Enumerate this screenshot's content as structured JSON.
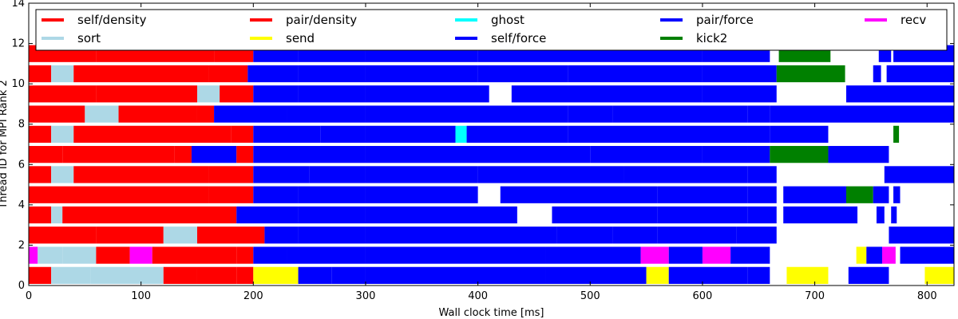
{
  "chart_data": {
    "type": "bar",
    "subtype": "task-timeline",
    "title": "",
    "xlabel": "Wall clock time [ms]",
    "ylabel": "Thread ID for MPI Rank 2",
    "xlim": [
      0,
      824
    ],
    "ylim": [
      0,
      14
    ],
    "xticks": [
      0,
      100,
      200,
      300,
      400,
      500,
      600,
      700,
      800
    ],
    "yticks": [
      0,
      2,
      4,
      6,
      8,
      10,
      12,
      14
    ],
    "grid": false,
    "legend_position": "top",
    "series": [
      {
        "name": "self/density",
        "color": "#ff0000"
      },
      {
        "name": "sort",
        "color": "#add8e6"
      },
      {
        "name": "pair/density",
        "color": "#ff0000"
      },
      {
        "name": "send",
        "color": "#ffff00"
      },
      {
        "name": "ghost",
        "color": "#00ffff"
      },
      {
        "name": "self/force",
        "color": "#0000ff"
      },
      {
        "name": "pair/force",
        "color": "#0000ff"
      },
      {
        "name": "kick2",
        "color": "#008000"
      },
      {
        "name": "recv",
        "color": "#ff00ff"
      }
    ],
    "threads": [
      {
        "thread": 0,
        "segments": [
          [
            0,
            20,
            "self/density"
          ],
          [
            20,
            55,
            "sort"
          ],
          [
            55,
            120,
            "sort"
          ],
          [
            120,
            150,
            "self/density"
          ],
          [
            150,
            185,
            "pair/density"
          ],
          [
            185,
            200,
            "pair/density"
          ],
          [
            200,
            240,
            "send"
          ],
          [
            240,
            270,
            "pair/force"
          ],
          [
            270,
            300,
            "pair/force"
          ],
          [
            300,
            460,
            "pair/force"
          ],
          [
            460,
            550,
            "pair/force"
          ],
          [
            550,
            570,
            "send"
          ],
          [
            570,
            640,
            "pair/force"
          ],
          [
            640,
            660,
            "pair/force"
          ],
          [
            675,
            712,
            "send"
          ],
          [
            730,
            766,
            "pair/force"
          ],
          [
            798,
            824,
            "send"
          ]
        ]
      },
      {
        "thread": 1,
        "segments": [
          [
            0,
            8,
            "recv"
          ],
          [
            8,
            30,
            "sort"
          ],
          [
            30,
            60,
            "sort"
          ],
          [
            60,
            90,
            "self/density"
          ],
          [
            90,
            110,
            "recv"
          ],
          [
            110,
            185,
            "self/density"
          ],
          [
            185,
            200,
            "pair/density"
          ],
          [
            200,
            230,
            "pair/force"
          ],
          [
            230,
            300,
            "pair/force"
          ],
          [
            300,
            460,
            "pair/force"
          ],
          [
            460,
            545,
            "pair/force"
          ],
          [
            545,
            570,
            "recv"
          ],
          [
            570,
            600,
            "pair/force"
          ],
          [
            600,
            625,
            "recv"
          ],
          [
            625,
            660,
            "pair/force"
          ],
          [
            737,
            746,
            "send"
          ],
          [
            746,
            760,
            "pair/force"
          ],
          [
            760,
            772,
            "recv"
          ],
          [
            776,
            824,
            "pair/force"
          ]
        ]
      },
      {
        "thread": 2,
        "segments": [
          [
            0,
            60,
            "self/density"
          ],
          [
            60,
            120,
            "self/density"
          ],
          [
            120,
            150,
            "sort"
          ],
          [
            150,
            210,
            "pair/density"
          ],
          [
            210,
            240,
            "pair/force"
          ],
          [
            240,
            300,
            "pair/force"
          ],
          [
            300,
            470,
            "pair/force"
          ],
          [
            470,
            520,
            "pair/force"
          ],
          [
            520,
            560,
            "pair/force"
          ],
          [
            560,
            630,
            "pair/force"
          ],
          [
            630,
            666,
            "pair/force"
          ],
          [
            766,
            824,
            "pair/force"
          ]
        ]
      },
      {
        "thread": 3,
        "segments": [
          [
            0,
            20,
            "self/density"
          ],
          [
            20,
            30,
            "sort"
          ],
          [
            30,
            185,
            "self/density"
          ],
          [
            185,
            240,
            "pair/force"
          ],
          [
            240,
            300,
            "pair/force"
          ],
          [
            300,
            435,
            "pair/force"
          ],
          [
            466,
            560,
            "pair/force"
          ],
          [
            560,
            640,
            "pair/force"
          ],
          [
            640,
            666,
            "pair/force"
          ],
          [
            672,
            738,
            "pair/force"
          ],
          [
            755,
            762,
            "pair/force"
          ],
          [
            768,
            773,
            "pair/force"
          ]
        ]
      },
      {
        "thread": 4,
        "segments": [
          [
            0,
            160,
            "self/density"
          ],
          [
            160,
            200,
            "pair/density"
          ],
          [
            200,
            240,
            "pair/force"
          ],
          [
            240,
            300,
            "pair/force"
          ],
          [
            300,
            400,
            "pair/force"
          ],
          [
            420,
            560,
            "pair/force"
          ],
          [
            560,
            640,
            "pair/force"
          ],
          [
            640,
            666,
            "pair/force"
          ],
          [
            672,
            728,
            "pair/force"
          ],
          [
            728,
            752,
            "kick2"
          ],
          [
            752,
            766,
            "pair/force"
          ],
          [
            770,
            776,
            "pair/force"
          ]
        ]
      },
      {
        "thread": 5,
        "segments": [
          [
            0,
            20,
            "self/density"
          ],
          [
            20,
            40,
            "sort"
          ],
          [
            40,
            160,
            "self/density"
          ],
          [
            160,
            200,
            "pair/density"
          ],
          [
            200,
            250,
            "pair/force"
          ],
          [
            250,
            300,
            "pair/force"
          ],
          [
            300,
            400,
            "pair/force"
          ],
          [
            400,
            530,
            "pair/force"
          ],
          [
            530,
            640,
            "pair/force"
          ],
          [
            640,
            666,
            "pair/force"
          ],
          [
            762,
            824,
            "pair/force"
          ]
        ]
      },
      {
        "thread": 6,
        "segments": [
          [
            0,
            30,
            "self/density"
          ],
          [
            30,
            130,
            "self/density"
          ],
          [
            130,
            145,
            "pair/density"
          ],
          [
            145,
            185,
            "pair/force"
          ],
          [
            185,
            200,
            "pair/density"
          ],
          [
            200,
            300,
            "pair/force"
          ],
          [
            300,
            500,
            "pair/force"
          ],
          [
            500,
            600,
            "pair/force"
          ],
          [
            600,
            660,
            "pair/force"
          ],
          [
            660,
            712,
            "kick2"
          ],
          [
            712,
            766,
            "pair/force"
          ]
        ]
      },
      {
        "thread": 7,
        "segments": [
          [
            0,
            20,
            "self/density"
          ],
          [
            20,
            40,
            "sort"
          ],
          [
            40,
            180,
            "self/density"
          ],
          [
            180,
            200,
            "pair/density"
          ],
          [
            200,
            260,
            "pair/force"
          ],
          [
            260,
            300,
            "pair/force"
          ],
          [
            300,
            380,
            "pair/force"
          ],
          [
            380,
            390,
            "ghost"
          ],
          [
            390,
            480,
            "pair/force"
          ],
          [
            480,
            660,
            "pair/force"
          ],
          [
            660,
            712,
            "pair/force"
          ],
          [
            770,
            775,
            "kick2"
          ]
        ]
      },
      {
        "thread": 8,
        "segments": [
          [
            0,
            50,
            "self/density"
          ],
          [
            50,
            80,
            "sort"
          ],
          [
            80,
            150,
            "self/density"
          ],
          [
            150,
            165,
            "pair/density"
          ],
          [
            165,
            230,
            "pair/force"
          ],
          [
            230,
            300,
            "pair/force"
          ],
          [
            300,
            480,
            "pair/force"
          ],
          [
            480,
            520,
            "pair/force"
          ],
          [
            520,
            640,
            "pair/force"
          ],
          [
            640,
            660,
            "pair/force"
          ],
          [
            660,
            824,
            "pair/force"
          ]
        ]
      },
      {
        "thread": 9,
        "segments": [
          [
            0,
            60,
            "self/density"
          ],
          [
            60,
            150,
            "self/density"
          ],
          [
            150,
            170,
            "sort"
          ],
          [
            170,
            200,
            "pair/density"
          ],
          [
            200,
            240,
            "pair/force"
          ],
          [
            240,
            300,
            "pair/force"
          ],
          [
            300,
            410,
            "pair/force"
          ],
          [
            430,
            600,
            "pair/force"
          ],
          [
            600,
            666,
            "pair/force"
          ],
          [
            728,
            824,
            "pair/force"
          ]
        ]
      },
      {
        "thread": 10,
        "segments": [
          [
            0,
            20,
            "self/density"
          ],
          [
            20,
            40,
            "sort"
          ],
          [
            40,
            160,
            "self/density"
          ],
          [
            160,
            195,
            "pair/density"
          ],
          [
            195,
            240,
            "pair/force"
          ],
          [
            240,
            300,
            "pair/force"
          ],
          [
            300,
            400,
            "pair/force"
          ],
          [
            400,
            480,
            "pair/force"
          ],
          [
            480,
            600,
            "pair/force"
          ],
          [
            600,
            666,
            "pair/force"
          ],
          [
            666,
            727,
            "kick2"
          ],
          [
            752,
            759,
            "pair/force"
          ],
          [
            764,
            824,
            "pair/force"
          ]
        ]
      },
      {
        "thread": 11,
        "segments": [
          [
            0,
            60,
            "self/density"
          ],
          [
            60,
            165,
            "self/density"
          ],
          [
            165,
            200,
            "pair/density"
          ],
          [
            200,
            240,
            "pair/force"
          ],
          [
            240,
            300,
            "pair/force"
          ],
          [
            300,
            400,
            "pair/force"
          ],
          [
            400,
            600,
            "pair/force"
          ],
          [
            600,
            660,
            "pair/force"
          ],
          [
            668,
            714,
            "kick2"
          ],
          [
            757,
            768,
            "pair/force"
          ],
          [
            770,
            824,
            "pair/force"
          ]
        ]
      }
    ]
  }
}
